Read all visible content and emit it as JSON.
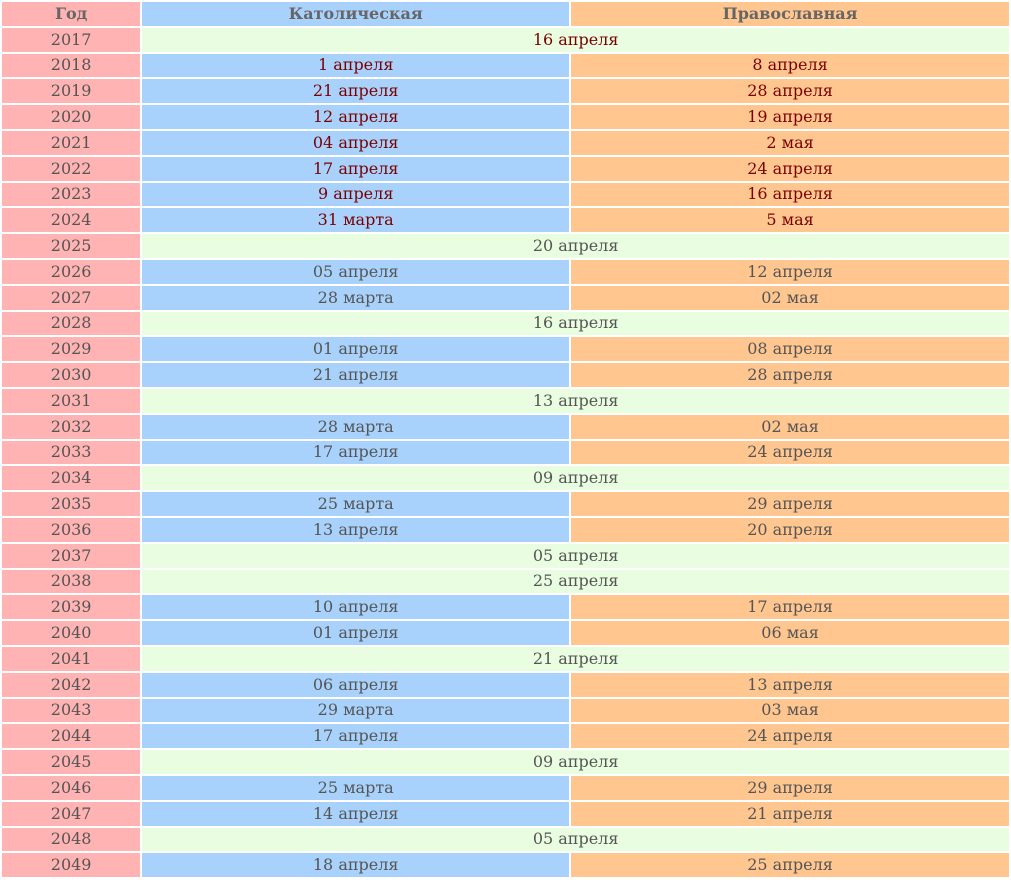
{
  "header": {
    "year": "Год",
    "catholic": "Католическая",
    "orthodox": "Православная"
  },
  "colors": {
    "year": "#ffb3b3",
    "catholic": "#a8d2fb",
    "orthodox": "#ffc68f",
    "same_date": "#e9fde0",
    "recent_text": "#7a0000",
    "future_text": "#555555"
  },
  "rows": [
    {
      "year": "2017",
      "same": "16 апреля"
    },
    {
      "year": "2018",
      "catholic": "1 апреля",
      "orthodox": "8 апреля"
    },
    {
      "year": "2019",
      "catholic": "21 апреля",
      "orthodox": "28 апреля"
    },
    {
      "year": "2020",
      "catholic": "12 апреля",
      "orthodox": "19 апреля"
    },
    {
      "year": "2021",
      "catholic": "04 апреля",
      "orthodox": "2 мая"
    },
    {
      "year": "2022",
      "catholic": "17 апреля",
      "orthodox": "24 апреля"
    },
    {
      "year": "2023",
      "catholic": "9 апреля",
      "orthodox": "16 апреля"
    },
    {
      "year": "2024",
      "catholic": "31 марта",
      "orthodox": "5 мая"
    },
    {
      "year": "2025",
      "same": "20 апреля"
    },
    {
      "year": "2026",
      "catholic": "05 апреля",
      "orthodox": "12 апреля"
    },
    {
      "year": "2027",
      "catholic": "28 марта",
      "orthodox": "02 мая"
    },
    {
      "year": "2028",
      "same": "16 апреля"
    },
    {
      "year": "2029",
      "catholic": "01 апреля",
      "orthodox": "08 апреля"
    },
    {
      "year": "2030",
      "catholic": "21 апреля",
      "orthodox": "28 апреля"
    },
    {
      "year": "2031",
      "same": "13 апреля"
    },
    {
      "year": "2032",
      "catholic": "28 марта",
      "orthodox": "02 мая"
    },
    {
      "year": "2033",
      "catholic": "17 апреля",
      "orthodox": "24 апреля"
    },
    {
      "year": "2034",
      "same": "09 апреля"
    },
    {
      "year": "2035",
      "catholic": "25 марта",
      "orthodox": "29 апреля"
    },
    {
      "year": "2036",
      "catholic": "13 апреля",
      "orthodox": "20 апреля"
    },
    {
      "year": "2037",
      "same": "05 апреля"
    },
    {
      "year": "2038",
      "same": "25 апреля"
    },
    {
      "year": "2039",
      "catholic": "10 апреля",
      "orthodox": "17 апреля"
    },
    {
      "year": "2040",
      "catholic": "01 апреля",
      "orthodox": "06 мая"
    },
    {
      "year": "2041",
      "same": "21 апреля"
    },
    {
      "year": "2042",
      "catholic": "06 апреля",
      "orthodox": "13 апреля"
    },
    {
      "year": "2043",
      "catholic": "29 марта",
      "orthodox": "03 мая"
    },
    {
      "year": "2044",
      "catholic": "17 апреля",
      "orthodox": "24 апреля"
    },
    {
      "year": "2045",
      "same": "09 апреля"
    },
    {
      "year": "2046",
      "catholic": "25 марта",
      "orthodox": "29 апреля"
    },
    {
      "year": "2047",
      "catholic": "14 апреля",
      "orthodox": "21 апреля"
    },
    {
      "year": "2048",
      "same": "05 апреля"
    },
    {
      "year": "2049",
      "catholic": "18 апреля",
      "orthodox": "25 апреля"
    }
  ]
}
